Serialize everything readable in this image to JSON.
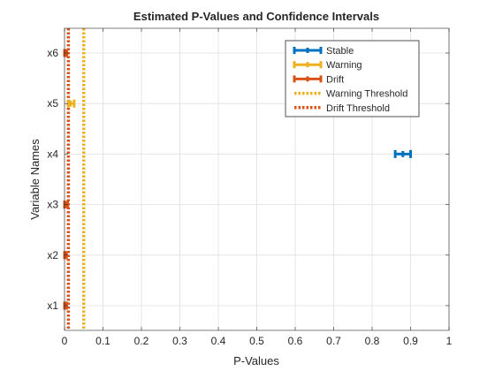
{
  "chart_data": {
    "type": "errorbar",
    "orientation": "horizontal",
    "title": "Estimated P-Values and Confidence Intervals",
    "xlabel": "P-Values",
    "ylabel": "Variable Names",
    "xlim": [
      0,
      1
    ],
    "xticks": [
      "0",
      "0.1",
      "0.2",
      "0.3",
      "0.4",
      "0.5",
      "0.6",
      "0.7",
      "0.8",
      "0.9",
      "1"
    ],
    "categories": [
      "x1",
      "x2",
      "x3",
      "x4",
      "x5",
      "x6"
    ],
    "grid": true,
    "legend_position": "top-right",
    "series": [
      {
        "name": "Stable",
        "color": "#0072BD",
        "points": [
          {
            "category": "x4",
            "estimate": 0.88,
            "lower": 0.86,
            "upper": 0.9
          }
        ]
      },
      {
        "name": "Warning",
        "color": "#EDB120",
        "points": [
          {
            "category": "x5",
            "estimate": 0.015,
            "lower": 0.01,
            "upper": 0.025
          }
        ]
      },
      {
        "name": "Drift",
        "color": "#D95319",
        "points": [
          {
            "category": "x1",
            "estimate": 0.0,
            "lower": 0.0,
            "upper": 0.005
          },
          {
            "category": "x2",
            "estimate": 0.0,
            "lower": 0.0,
            "upper": 0.005
          },
          {
            "category": "x3",
            "estimate": 0.002,
            "lower": 0.0,
            "upper": 0.008
          },
          {
            "category": "x6",
            "estimate": 0.001,
            "lower": 0.0,
            "upper": 0.006
          }
        ]
      }
    ],
    "thresholds": [
      {
        "name": "Warning Threshold",
        "value": 0.05,
        "color": "#EDB120"
      },
      {
        "name": "Drift Threshold",
        "value": 0.01,
        "color": "#D95319"
      }
    ]
  }
}
